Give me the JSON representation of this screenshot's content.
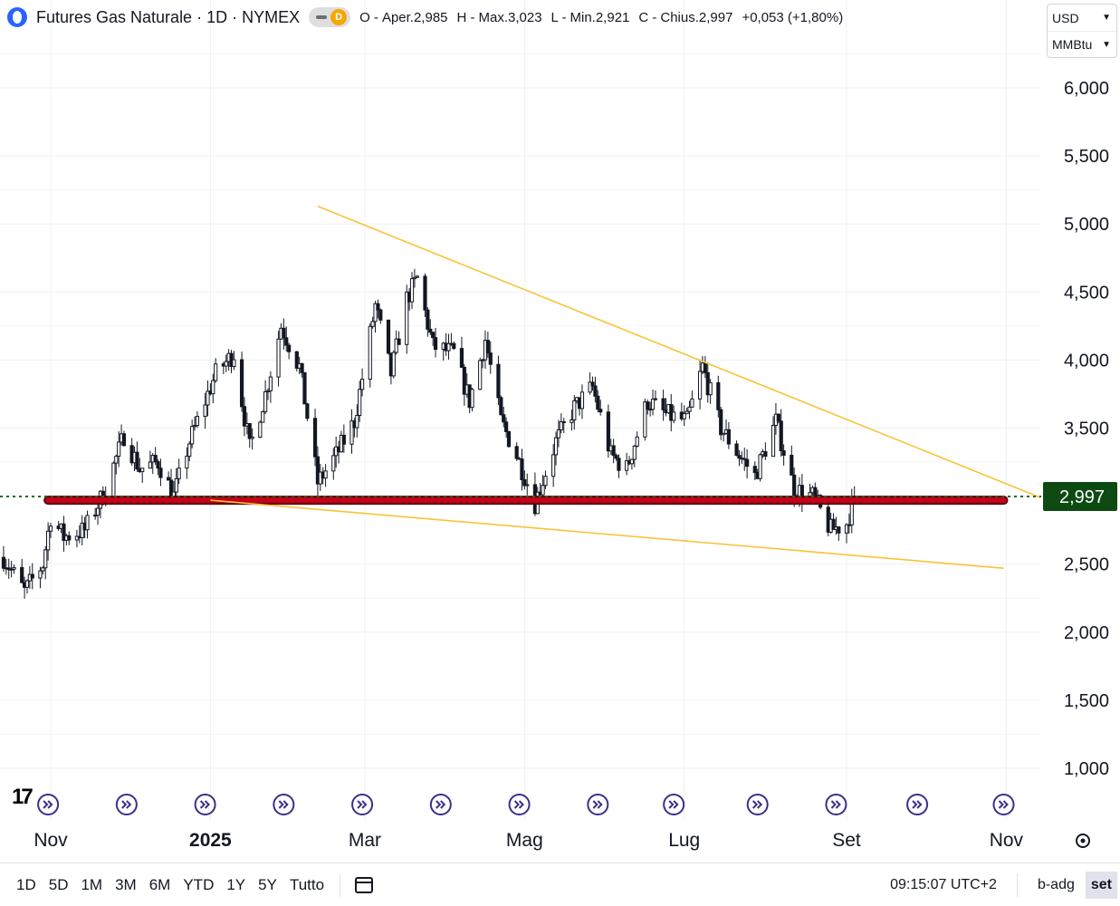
{
  "header": {
    "title": "Futures Gas Naturale · 1D · NYMEX",
    "badge": "D",
    "o_label": "O -",
    "o_value": "Aper.2,985",
    "h_label": "H -",
    "h_value": "Max.3,023",
    "l_label": "L -",
    "l_value": "Min.2,921",
    "c_label": "C -",
    "c_value": "Chius.2,997",
    "change": "+0,053 (+1,80%)"
  },
  "unit_selector": {
    "currency": "USD",
    "unit": "MMBtu"
  },
  "colors": {
    "candle": "#131722",
    "trendline": "#f9c336",
    "support_line": "#c4001a",
    "last_price_line": "#1e6b1e",
    "price_label_bg": "#0d4a12",
    "event_marker": "#3f2d8c"
  },
  "chart_data": {
    "type": "candlestick",
    "y_ticks": [
      "1,000",
      "1,500",
      "2,000",
      "2,500",
      "3,000",
      "3,500",
      "4,000",
      "4,500",
      "5,000",
      "5,500",
      "6,000"
    ],
    "y_tick_values": [
      1.0,
      1.5,
      2.0,
      2.5,
      3.0,
      3.5,
      4.0,
      4.5,
      5.0,
      5.5,
      6.0
    ],
    "x_tick_labels": [
      "Nov",
      "2025",
      "Mar",
      "Mag",
      "Lug",
      "Set",
      "Nov"
    ],
    "x_tick_dates": [
      "2024-11-01",
      "2025-01-01",
      "2025-03-01",
      "2025-05-01",
      "2025-07-01",
      "2025-09-01",
      "2025-11-01"
    ],
    "x_range": [
      "2024-10-14",
      "2025-11-14"
    ],
    "y_range": [
      0.9,
      6.5
    ],
    "grid": true,
    "last_price": 2.997,
    "last_price_label": "2,997",
    "close_anchors": [
      [
        "2024-10-14",
        2.55
      ],
      [
        "2024-10-22",
        2.3
      ],
      [
        "2024-10-29",
        2.5
      ],
      [
        "2024-11-01",
        2.85
      ],
      [
        "2024-11-06",
        2.7
      ],
      [
        "2024-11-14",
        2.75
      ],
      [
        "2024-11-22",
        3.05
      ],
      [
        "2024-11-29",
        3.45
      ],
      [
        "2024-12-05",
        3.2
      ],
      [
        "2024-12-12",
        3.25
      ],
      [
        "2024-12-18",
        3.0
      ],
      [
        "2024-12-24",
        3.4
      ],
      [
        "2025-01-03",
        3.9
      ],
      [
        "2025-01-10",
        4.05
      ],
      [
        "2025-01-16",
        3.35
      ],
      [
        "2025-01-22",
        3.75
      ],
      [
        "2025-01-28",
        4.25
      ],
      [
        "2025-02-04",
        3.95
      ],
      [
        "2025-02-11",
        3.1
      ],
      [
        "2025-02-18",
        3.3
      ],
      [
        "2025-02-25",
        3.55
      ],
      [
        "2025-03-05",
        4.4
      ],
      [
        "2025-03-11",
        3.9
      ],
      [
        "2025-03-17",
        4.45
      ],
      [
        "2025-03-21",
        4.6
      ],
      [
        "2025-03-27",
        4.1
      ],
      [
        "2025-04-04",
        4.05
      ],
      [
        "2025-04-10",
        3.7
      ],
      [
        "2025-04-16",
        4.15
      ],
      [
        "2025-04-22",
        3.55
      ],
      [
        "2025-04-28",
        3.3
      ],
      [
        "2025-05-05",
        2.95
      ],
      [
        "2025-05-13",
        3.4
      ],
      [
        "2025-05-20",
        3.65
      ],
      [
        "2025-05-27",
        3.8
      ],
      [
        "2025-06-03",
        3.3
      ],
      [
        "2025-06-09",
        3.2
      ],
      [
        "2025-06-17",
        3.7
      ],
      [
        "2025-06-24",
        3.6
      ],
      [
        "2025-07-02",
        3.55
      ],
      [
        "2025-07-08",
        3.95
      ],
      [
        "2025-07-15",
        3.5
      ],
      [
        "2025-07-22",
        3.3
      ],
      [
        "2025-07-28",
        3.15
      ],
      [
        "2025-08-05",
        3.55
      ],
      [
        "2025-08-12",
        3.05
      ],
      [
        "2025-08-19",
        3.0
      ],
      [
        "2025-08-26",
        2.75
      ],
      [
        "2025-09-01",
        2.8
      ],
      [
        "2025-09-04",
        2.997
      ]
    ],
    "support_line": {
      "from": [
        "2024-10-31",
        2.97
      ],
      "to": [
        "2025-10-31",
        2.97
      ]
    },
    "trendlines": [
      {
        "from": [
          "2025-02-11",
          5.13
        ],
        "to": [
          "2025-11-14",
          2.99
        ]
      },
      {
        "from": [
          "2025-01-01",
          2.97
        ],
        "to": [
          "2025-10-31",
          2.47
        ]
      }
    ],
    "event_marker_dates": [
      "2024-10-31",
      "2024-11-30",
      "2024-12-30",
      "2025-01-29",
      "2025-02-28",
      "2025-03-30",
      "2025-04-29",
      "2025-05-29",
      "2025-06-27",
      "2025-07-29",
      "2025-08-28",
      "2025-09-28",
      "2025-10-31"
    ]
  },
  "bottom_bar": {
    "ranges": [
      "1D",
      "5D",
      "1M",
      "3M",
      "6M",
      "YTD",
      "1Y",
      "5Y",
      "Tutto"
    ],
    "clock": "09:15:07 UTC+2",
    "adjust": "b-adg",
    "session": "set"
  },
  "logo_text": "17"
}
